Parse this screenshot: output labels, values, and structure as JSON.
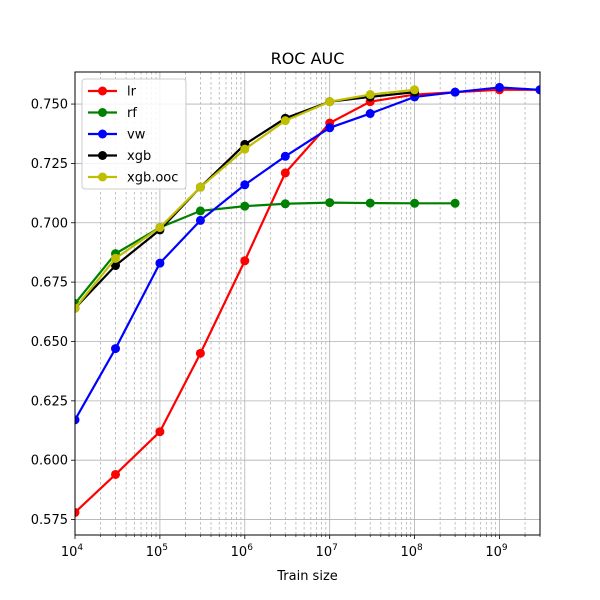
{
  "chart_data": {
    "type": "line",
    "title": "ROC AUC",
    "xlabel": "Train size",
    "ylabel": "",
    "xscale": "log",
    "xlim": [
      10000,
      3000000000
    ],
    "ylim": [
      0.5685,
      0.7635
    ],
    "grid": true,
    "legend_position": "top-left",
    "x_ticks": [
      {
        "value": 10000,
        "base": "10",
        "exp": "4"
      },
      {
        "value": 100000,
        "base": "10",
        "exp": "5"
      },
      {
        "value": 1000000,
        "base": "10",
        "exp": "6"
      },
      {
        "value": 10000000,
        "base": "10",
        "exp": "7"
      },
      {
        "value": 100000000,
        "base": "10",
        "exp": "8"
      },
      {
        "value": 1000000000,
        "base": "10",
        "exp": "9"
      }
    ],
    "y_ticks": [
      "0.575",
      "0.600",
      "0.625",
      "0.650",
      "0.675",
      "0.700",
      "0.725",
      "0.750"
    ],
    "series": [
      {
        "name": "lr",
        "color": "#ff0000",
        "x": [
          10000,
          30000,
          100000,
          300000,
          1000000,
          3000000,
          10000000,
          30000000,
          100000000,
          300000000,
          1000000000,
          3000000000
        ],
        "y": [
          0.578,
          0.594,
          0.612,
          0.645,
          0.684,
          0.721,
          0.742,
          0.751,
          0.754,
          0.755,
          0.756,
          0.756
        ]
      },
      {
        "name": "rf",
        "color": "#008000",
        "x": [
          10000,
          30000,
          100000,
          300000,
          1000000,
          3000000,
          10000000,
          30000000,
          100000000,
          300000000
        ],
        "y": [
          0.666,
          0.687,
          0.698,
          0.705,
          0.707,
          0.708,
          0.7085,
          0.7083,
          0.7082,
          0.7082
        ]
      },
      {
        "name": "vw",
        "color": "#0000ff",
        "x": [
          10000,
          30000,
          100000,
          300000,
          1000000,
          3000000,
          10000000,
          30000000,
          100000000,
          300000000,
          1000000000,
          3000000000
        ],
        "y": [
          0.617,
          0.647,
          0.683,
          0.701,
          0.716,
          0.728,
          0.74,
          0.746,
          0.753,
          0.755,
          0.757,
          0.756
        ]
      },
      {
        "name": "xgb",
        "color": "#000000",
        "x": [
          10000,
          30000,
          100000,
          300000,
          1000000,
          3000000,
          10000000,
          30000000,
          100000000
        ],
        "y": [
          0.664,
          0.682,
          0.697,
          0.715,
          0.733,
          0.744,
          0.751,
          0.753,
          0.755
        ]
      },
      {
        "name": "xgb.ooc",
        "color": "#bfbf00",
        "x": [
          10000,
          30000,
          100000,
          300000,
          1000000,
          3000000,
          10000000,
          30000000,
          100000000
        ],
        "y": [
          0.664,
          0.685,
          0.698,
          0.715,
          0.731,
          0.743,
          0.751,
          0.754,
          0.756
        ]
      }
    ]
  }
}
